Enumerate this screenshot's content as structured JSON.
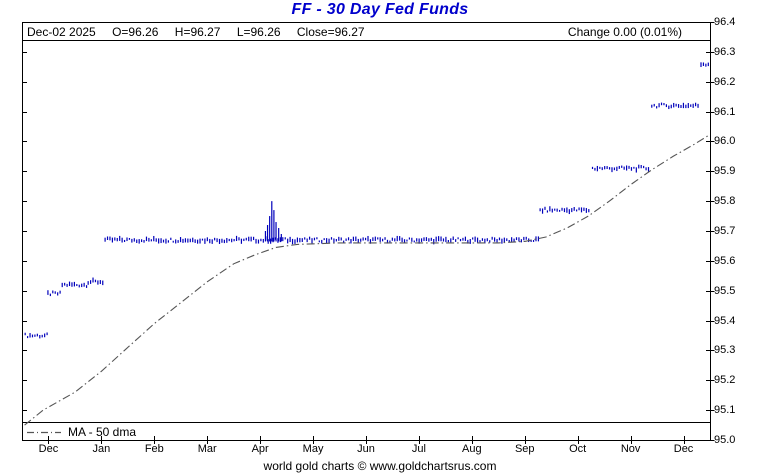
{
  "header": {
    "title": "FF  -  30 Day Fed Funds",
    "quote_parts": [
      "Dec-02 2025",
      "O=96.26",
      "H=96.27",
      "L=96.26",
      "Close=96.27"
    ],
    "change": "Change 0.00 (0.01%)"
  },
  "legend": {
    "label": "MA - 50 dma"
  },
  "footer": {
    "credit": "world gold charts © www.goldchartsrus.com"
  },
  "colors": {
    "title": "#0000cc",
    "price": "#0000bb",
    "ma": "#555555",
    "frame": "#000000",
    "background": "#ffffff"
  },
  "chart_data": {
    "type": "line",
    "title": "FF - 30 Day Fed Funds",
    "symbol": "FF",
    "quote": {
      "date": "Dec-02 2025",
      "open": 96.26,
      "high": 96.27,
      "low": 96.26,
      "close": 96.27,
      "change": 0.0,
      "change_pct": "0.01%"
    },
    "xlabel": "",
    "ylabel": "",
    "grid": false,
    "legend_position": "bottom-left",
    "ylim": [
      95.0,
      96.4
    ],
    "y_ticks": [
      96.4,
      96.3,
      96.2,
      96.1,
      96.0,
      95.9,
      95.8,
      95.7,
      95.6,
      95.5,
      95.4,
      95.3,
      95.2,
      95.1,
      95.0
    ],
    "x_domain": [
      0,
      13
    ],
    "x_tick_labels": [
      "Dec",
      "Jan",
      "Feb",
      "Mar",
      "Apr",
      "May",
      "Jun",
      "Jul",
      "Aug",
      "Sep",
      "Oct",
      "Nov",
      "Dec"
    ],
    "series": [
      {
        "name": "FF daily price",
        "type": "daily-tick-bars",
        "color": "#0000bb",
        "segments": [
          {
            "x_start": 0.06,
            "x_end": 0.49,
            "level": 95.35
          },
          {
            "x_start": 0.49,
            "x_end": 0.76,
            "level": 95.49
          },
          {
            "x_start": 0.76,
            "x_end": 1.25,
            "level": 95.52
          },
          {
            "x_start": 1.25,
            "x_end": 1.57,
            "level": 95.53
          },
          {
            "x_start": 1.57,
            "x_end": 9.76,
            "level": 95.67
          },
          {
            "x_start": 9.79,
            "x_end": 10.74,
            "level": 95.77
          },
          {
            "x_start": 10.78,
            "x_end": 11.87,
            "level": 95.91
          },
          {
            "x_start": 11.9,
            "x_end": 12.79,
            "level": 96.12
          },
          {
            "x_start": 12.83,
            "x_end": 12.98,
            "level": 96.26
          }
        ],
        "spikes": [
          {
            "x": 4.6,
            "low": 95.665,
            "high": 95.7
          },
          {
            "x": 4.64,
            "low": 95.665,
            "high": 95.72
          },
          {
            "x": 4.68,
            "low": 95.665,
            "high": 95.75
          },
          {
            "x": 4.72,
            "low": 95.665,
            "high": 95.8
          },
          {
            "x": 4.76,
            "low": 95.665,
            "high": 95.77
          },
          {
            "x": 4.8,
            "low": 95.665,
            "high": 95.73
          },
          {
            "x": 4.85,
            "low": 95.665,
            "high": 95.71
          },
          {
            "x": 4.9,
            "low": 95.665,
            "high": 95.69
          }
        ]
      },
      {
        "name": "MA - 50 dma",
        "type": "line",
        "style": "dash-dot",
        "color": "#555555",
        "points": [
          [
            0.05,
            95.05
          ],
          [
            0.4,
            95.1
          ],
          [
            1.0,
            95.16
          ],
          [
            1.5,
            95.23
          ],
          [
            2.0,
            95.31
          ],
          [
            2.5,
            95.39
          ],
          [
            3.0,
            95.46
          ],
          [
            3.5,
            95.53
          ],
          [
            4.0,
            95.59
          ],
          [
            4.4,
            95.62
          ],
          [
            4.8,
            95.645
          ],
          [
            5.2,
            95.655
          ],
          [
            6.0,
            95.66
          ],
          [
            7.0,
            95.66
          ],
          [
            8.0,
            95.66
          ],
          [
            9.0,
            95.66
          ],
          [
            9.5,
            95.665
          ],
          [
            9.9,
            95.68
          ],
          [
            10.3,
            95.71
          ],
          [
            10.7,
            95.75
          ],
          [
            11.1,
            95.8
          ],
          [
            11.5,
            95.855
          ],
          [
            11.9,
            95.905
          ],
          [
            12.3,
            95.95
          ],
          [
            12.7,
            95.99
          ],
          [
            12.97,
            96.02
          ]
        ]
      }
    ]
  }
}
